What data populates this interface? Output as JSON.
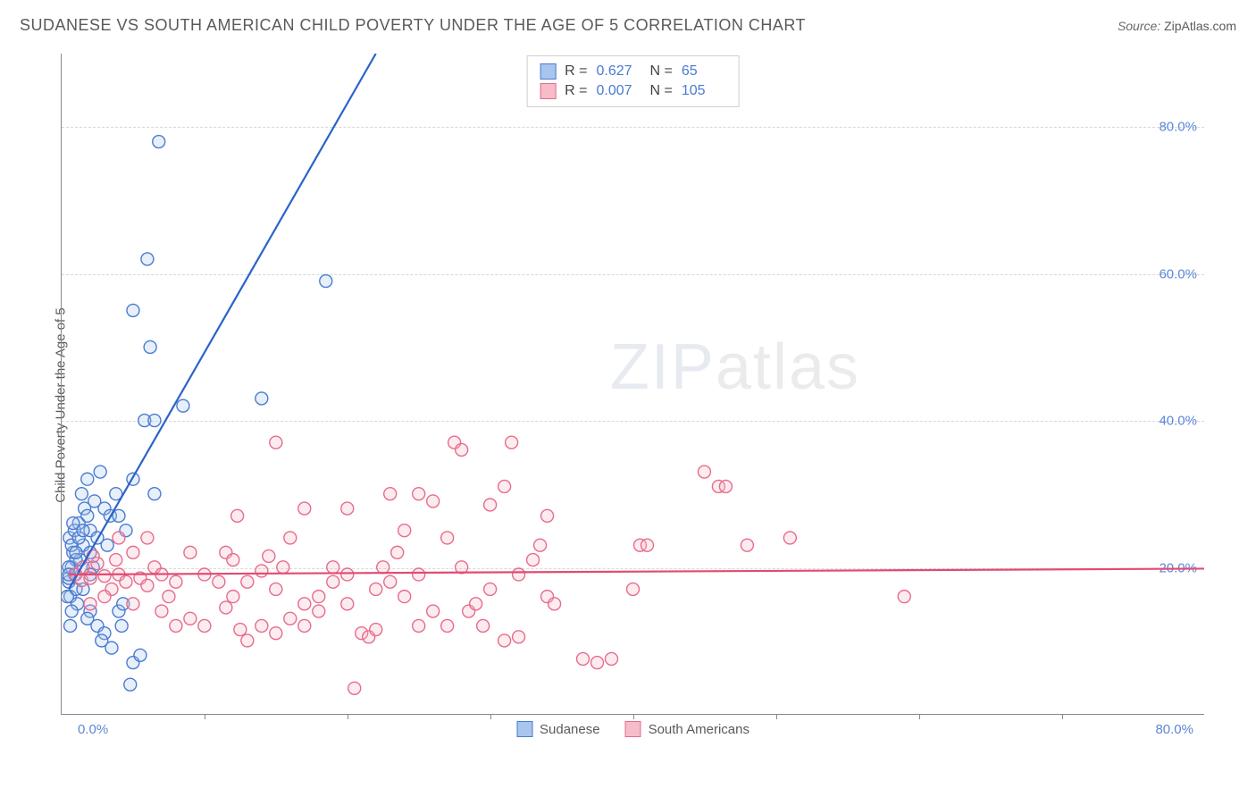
{
  "header": {
    "title": "SUDANESE VS SOUTH AMERICAN CHILD POVERTY UNDER THE AGE OF 5 CORRELATION CHART",
    "source_prefix": "Source: ",
    "source_name": "ZipAtlas.com"
  },
  "watermark": {
    "bold": "ZIP",
    "light": "atlas"
  },
  "chart": {
    "type": "scatter-correlation",
    "y_axis_label": "Child Poverty Under the Age of 5",
    "x_range": [
      0,
      80
    ],
    "y_range": [
      0,
      90
    ],
    "x_min_label": "0.0%",
    "x_max_label": "80.0%",
    "y_ticks": [
      {
        "val": 20,
        "label": "20.0%"
      },
      {
        "val": 40,
        "label": "40.0%"
      },
      {
        "val": 60,
        "label": "60.0%"
      },
      {
        "val": 80,
        "label": "80.0%"
      }
    ],
    "x_tick_marks": [
      10,
      20,
      30,
      40,
      50,
      60,
      70
    ],
    "grid_color": "#d8d8d8",
    "background_color": "#ffffff",
    "marker_radius": 7,
    "marker_stroke_width": 1.4,
    "marker_fill_opacity": 0.28,
    "trend_line_width": 2.2,
    "series": [
      {
        "id": "sudanese",
        "label": "Sudanese",
        "fill": "#a8c6ed",
        "stroke": "#4a7bd0",
        "line_color": "#2b63c9",
        "R": "0.627",
        "N": "65",
        "trend": {
          "x1": 0.5,
          "y1": 17,
          "x2": 22,
          "y2": 90
        },
        "points": [
          [
            0.5,
            18
          ],
          [
            0.6,
            16
          ],
          [
            0.7,
            20
          ],
          [
            0.8,
            22
          ],
          [
            0.55,
            24
          ],
          [
            0.9,
            19
          ],
          [
            1.0,
            17
          ],
          [
            1.1,
            15
          ],
          [
            0.7,
            14
          ],
          [
            1.3,
            21
          ],
          [
            1.5,
            23
          ],
          [
            1.2,
            26
          ],
          [
            1.6,
            28
          ],
          [
            1.4,
            30
          ],
          [
            2.0,
            25
          ],
          [
            2.2,
            20
          ],
          [
            0.5,
            18.5
          ],
          [
            1.8,
            27
          ],
          [
            2.3,
            29
          ],
          [
            2.5,
            24
          ],
          [
            3.0,
            28
          ],
          [
            3.4,
            27
          ],
          [
            1.8,
            32
          ],
          [
            2.7,
            33
          ],
          [
            0.9,
            25
          ],
          [
            3.8,
            30
          ],
          [
            4.0,
            27
          ],
          [
            4.5,
            25
          ],
          [
            1.0,
            21
          ],
          [
            2.0,
            19
          ],
          [
            5.0,
            32
          ],
          [
            6.5,
            30
          ],
          [
            0.7,
            23
          ],
          [
            1.2,
            24
          ],
          [
            0.5,
            20
          ],
          [
            1.5,
            25
          ],
          [
            5.8,
            40
          ],
          [
            6.5,
            40
          ],
          [
            8.5,
            42
          ],
          [
            14.0,
            43
          ],
          [
            0.4,
            16
          ],
          [
            0.6,
            12
          ],
          [
            6.2,
            50
          ],
          [
            5.0,
            55
          ],
          [
            6.0,
            62
          ],
          [
            18.5,
            59
          ],
          [
            6.8,
            78
          ],
          [
            0.8,
            26
          ],
          [
            2.5,
            12
          ],
          [
            3.0,
            11
          ],
          [
            4.0,
            14
          ],
          [
            4.3,
            15
          ],
          [
            5.0,
            7
          ],
          [
            5.5,
            8
          ],
          [
            4.8,
            4
          ],
          [
            2.0,
            14
          ],
          [
            1.5,
            17
          ],
          [
            2.0,
            22
          ],
          [
            3.2,
            23
          ],
          [
            0.5,
            19
          ],
          [
            4.2,
            12
          ],
          [
            1.8,
            13
          ],
          [
            3.5,
            9
          ],
          [
            2.8,
            10
          ],
          [
            1.0,
            22
          ]
        ]
      },
      {
        "id": "south_americans",
        "label": "South Americans",
        "fill": "#f6bcc8",
        "stroke": "#e86b8a",
        "line_color": "#e24a72",
        "R": "0.007",
        "N": "105",
        "trend": {
          "x1": 0.5,
          "y1": 19.0,
          "x2": 80,
          "y2": 19.8
        },
        "points": [
          [
            1,
            19
          ],
          [
            1.4,
            18.2
          ],
          [
            1.5,
            20
          ],
          [
            2,
            18.5
          ],
          [
            2.5,
            20.5
          ],
          [
            2.2,
            21.5
          ],
          [
            3,
            18.8
          ],
          [
            3.5,
            17
          ],
          [
            4,
            19
          ],
          [
            3.8,
            21
          ],
          [
            4.5,
            18
          ],
          [
            5,
            22
          ],
          [
            5.5,
            18.5
          ],
          [
            6,
            17.5
          ],
          [
            6.5,
            20
          ],
          [
            7,
            19
          ],
          [
            7.5,
            16
          ],
          [
            8,
            18
          ],
          [
            10,
            19
          ],
          [
            11,
            18
          ],
          [
            11.5,
            22
          ],
          [
            12,
            21
          ],
          [
            13,
            18
          ],
          [
            14,
            19.5
          ],
          [
            14.5,
            21.5
          ],
          [
            15,
            17
          ],
          [
            15.5,
            20
          ],
          [
            16,
            24
          ],
          [
            12.3,
            27
          ],
          [
            9,
            13
          ],
          [
            10,
            12
          ],
          [
            11.5,
            14.5
          ],
          [
            12.5,
            11.5
          ],
          [
            13,
            10
          ],
          [
            14,
            12
          ],
          [
            15,
            11
          ],
          [
            16,
            13
          ],
          [
            17,
            15
          ],
          [
            18,
            14
          ],
          [
            19,
            18
          ],
          [
            20,
            19
          ],
          [
            20,
            15
          ],
          [
            21,
            11
          ],
          [
            21.5,
            10.5
          ],
          [
            22,
            17
          ],
          [
            22.5,
            20
          ],
          [
            23,
            18
          ],
          [
            23.5,
            22
          ],
          [
            24,
            16
          ],
          [
            25,
            19
          ],
          [
            26,
            29
          ],
          [
            27,
            24
          ],
          [
            27.5,
            37
          ],
          [
            28,
            20
          ],
          [
            28.5,
            14
          ],
          [
            29,
            15
          ],
          [
            29.5,
            12
          ],
          [
            30,
            28.5
          ],
          [
            30,
            17
          ],
          [
            31,
            31
          ],
          [
            31.5,
            37
          ],
          [
            32,
            19
          ],
          [
            32,
            10.5
          ],
          [
            33,
            21
          ],
          [
            33.5,
            23
          ],
          [
            34,
            16
          ],
          [
            34.5,
            15
          ],
          [
            25,
            12
          ],
          [
            26,
            14
          ],
          [
            20,
            28
          ],
          [
            23,
            30
          ],
          [
            34,
            27
          ],
          [
            20.5,
            3.5
          ],
          [
            27,
            12
          ],
          [
            28,
            36
          ],
          [
            19,
            20
          ],
          [
            18,
            16
          ],
          [
            17,
            12
          ],
          [
            31,
            10
          ],
          [
            15,
            37
          ],
          [
            25,
            30
          ],
          [
            24,
            25
          ],
          [
            22,
            11.5
          ],
          [
            12,
            16
          ],
          [
            8,
            12
          ],
          [
            9,
            22
          ],
          [
            6,
            24
          ],
          [
            4,
            24
          ],
          [
            17,
            28
          ],
          [
            36.5,
            7.5
          ],
          [
            37.5,
            7
          ],
          [
            38.5,
            7.5
          ],
          [
            40,
            17
          ],
          [
            40.5,
            23
          ],
          [
            41,
            23
          ],
          [
            45,
            33
          ],
          [
            46,
            31
          ],
          [
            46.5,
            31
          ],
          [
            48,
            23
          ],
          [
            51,
            24
          ],
          [
            59,
            16
          ],
          [
            2,
            15
          ],
          [
            3,
            16
          ],
          [
            5,
            15
          ],
          [
            7,
            14
          ]
        ]
      }
    ],
    "bottom_legend": [
      {
        "label": "Sudanese",
        "fill": "#a8c6ed",
        "stroke": "#4a7bd0"
      },
      {
        "label": "South Americans",
        "fill": "#f6bcc8",
        "stroke": "#e86b8a"
      }
    ]
  }
}
